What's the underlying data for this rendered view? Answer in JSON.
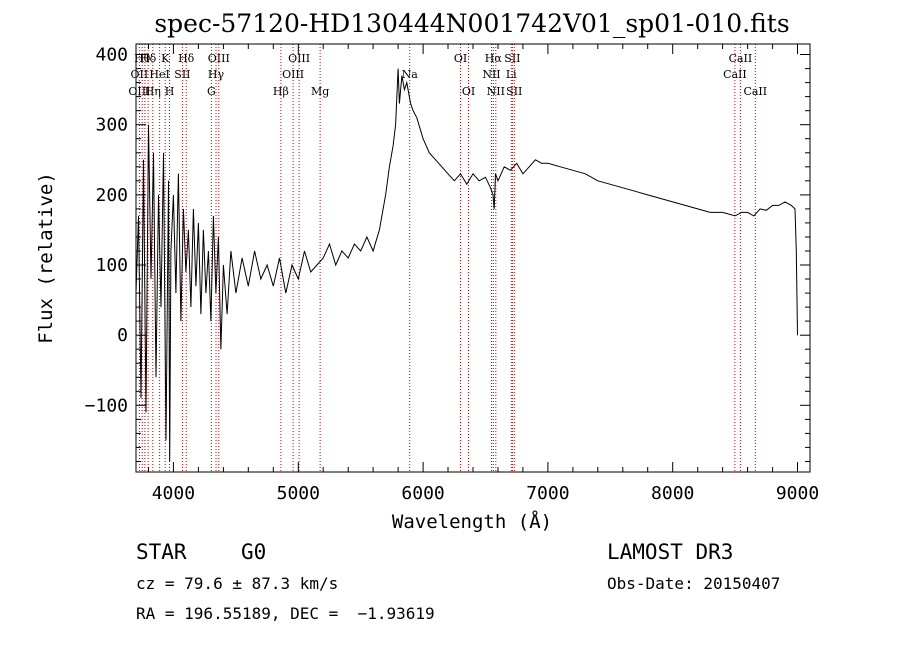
{
  "chart_data": {
    "type": "line",
    "title": "spec-57120-HD130444N001742V01_sp01-010.fits",
    "xlabel": "Wavelength (Å)",
    "ylabel": "Flux (relative)",
    "xlim": [
      3700,
      9100
    ],
    "ylim": [
      -195,
      415
    ],
    "xticks": [
      4000,
      5000,
      6000,
      7000,
      8000,
      9000
    ],
    "yticks": [
      -100,
      0,
      100,
      200,
      300,
      400
    ],
    "xtick_labels": [
      "4000",
      "5000",
      "6000",
      "7000",
      "8000",
      "9000"
    ],
    "ytick_labels": [
      "−100",
      "0",
      "100",
      "200",
      "300",
      "400"
    ],
    "grid": false,
    "series": [
      {
        "name": "flux",
        "x": [
          3700,
          3720,
          3740,
          3760,
          3780,
          3800,
          3820,
          3840,
          3860,
          3880,
          3900,
          3920,
          3940,
          3960,
          3970,
          3980,
          4000,
          4020,
          4040,
          4060,
          4080,
          4100,
          4120,
          4140,
          4160,
          4180,
          4200,
          4220,
          4240,
          4260,
          4280,
          4300,
          4320,
          4340,
          4360,
          4380,
          4400,
          4430,
          4460,
          4500,
          4550,
          4600,
          4650,
          4700,
          4750,
          4800,
          4850,
          4900,
          4950,
          5000,
          5050,
          5100,
          5150,
          5200,
          5250,
          5300,
          5350,
          5400,
          5450,
          5500,
          5550,
          5600,
          5650,
          5700,
          5730,
          5760,
          5780,
          5800,
          5810,
          5830,
          5850,
          5870,
          5900,
          5920,
          5950,
          6000,
          6050,
          6100,
          6150,
          6200,
          6250,
          6300,
          6350,
          6400,
          6450,
          6500,
          6540,
          6560,
          6570,
          6580,
          6600,
          6650,
          6700,
          6750,
          6800,
          6850,
          6900,
          6950,
          7000,
          7100,
          7200,
          7300,
          7400,
          7500,
          7600,
          7700,
          7800,
          7900,
          8000,
          8100,
          8200,
          8300,
          8400,
          8500,
          8550,
          8600,
          8650,
          8700,
          8750,
          8800,
          8850,
          8900,
          8950,
          8980,
          8990,
          9000
        ],
        "y": [
          60,
          170,
          -90,
          250,
          -110,
          300,
          80,
          260,
          -60,
          200,
          40,
          260,
          -150,
          220,
          -180,
          120,
          200,
          60,
          230,
          20,
          180,
          90,
          150,
          40,
          180,
          70,
          160,
          30,
          150,
          60,
          120,
          20,
          170,
          60,
          140,
          -20,
          100,
          30,
          120,
          60,
          110,
          70,
          120,
          80,
          100,
          70,
          110,
          60,
          100,
          80,
          120,
          90,
          100,
          110,
          130,
          100,
          120,
          110,
          130,
          120,
          140,
          120,
          150,
          200,
          240,
          270,
          300,
          380,
          330,
          370,
          350,
          360,
          330,
          320,
          310,
          280,
          260,
          250,
          240,
          230,
          220,
          230,
          215,
          230,
          220,
          225,
          210,
          200,
          180,
          230,
          220,
          240,
          235,
          245,
          230,
          240,
          250,
          245,
          245,
          240,
          235,
          230,
          220,
          215,
          210,
          205,
          200,
          195,
          190,
          185,
          180,
          175,
          175,
          170,
          175,
          175,
          170,
          180,
          178,
          185,
          185,
          190,
          185,
          180,
          120,
          0
        ]
      }
    ],
    "line_labels": [
      {
        "name": "Hδ",
        "x": 3797,
        "row": 1
      },
      {
        "name": "OII",
        "x": 3727,
        "row": 2
      },
      {
        "name": "OIII",
        "x": 3727,
        "row": 3
      },
      {
        "name": "Hθ",
        "x": 3750,
        "row": 1
      },
      {
        "name": "Hη",
        "x": 3835,
        "row": 3
      },
      {
        "name": "HeI",
        "x": 3889,
        "row": 2
      },
      {
        "name": "K",
        "x": 3934,
        "row": 1
      },
      {
        "name": "H",
        "x": 3968,
        "row": 3
      },
      {
        "name": "SII",
        "x": 4072,
        "row": 2
      },
      {
        "name": "Hδ",
        "x": 4102,
        "row": 1
      },
      {
        "name": "OIII",
        "x": 4363,
        "row": 1
      },
      {
        "name": "Hγ",
        "x": 4341,
        "row": 2
      },
      {
        "name": "G",
        "x": 4304,
        "row": 3
      },
      {
        "name": "Hβ",
        "x": 4861,
        "row": 3
      },
      {
        "name": "OIII",
        "x": 5007,
        "row": 1
      },
      {
        "name": "OIII",
        "x": 4959,
        "row": 2
      },
      {
        "name": "Mg",
        "x": 5175,
        "row": 3
      },
      {
        "name": "Na",
        "x": 5893,
        "row": 2
      },
      {
        "name": "OI",
        "x": 6300,
        "row": 1
      },
      {
        "name": "OI",
        "x": 6364,
        "row": 3
      },
      {
        "name": "Hα",
        "x": 6563,
        "row": 1
      },
      {
        "name": "NII",
        "x": 6548,
        "row": 2
      },
      {
        "name": "NII",
        "x": 6583,
        "row": 3
      },
      {
        "name": "SII",
        "x": 6716,
        "row": 1
      },
      {
        "name": "Li",
        "x": 6707,
        "row": 2
      },
      {
        "name": "SII",
        "x": 6731,
        "row": 3
      },
      {
        "name": "CaII",
        "x": 8542,
        "row": 1
      },
      {
        "name": "CaII",
        "x": 8498,
        "row": 2
      },
      {
        "name": "CaII",
        "x": 8662,
        "row": 3
      }
    ],
    "marker_lines_x": [
      3727,
      3750,
      3771,
      3797,
      3835,
      3889,
      3934,
      3968,
      4072,
      4102,
      4304,
      4341,
      4363,
      4861,
      4959,
      5007,
      5175,
      5893,
      6300,
      6364,
      6548,
      6563,
      6583,
      6707,
      6716,
      6731,
      8498,
      8542,
      8662
    ],
    "marker_color": "#cc0000"
  },
  "info": {
    "class_label": "STAR",
    "subclass": "G0",
    "survey": "LAMOST DR3",
    "cz_line": "cz = 79.6 ± 87.3 km/s",
    "obs_date": "Obs-Date: 20150407",
    "coords_line": "RA = 196.55189, DEC =  −1.93619"
  }
}
